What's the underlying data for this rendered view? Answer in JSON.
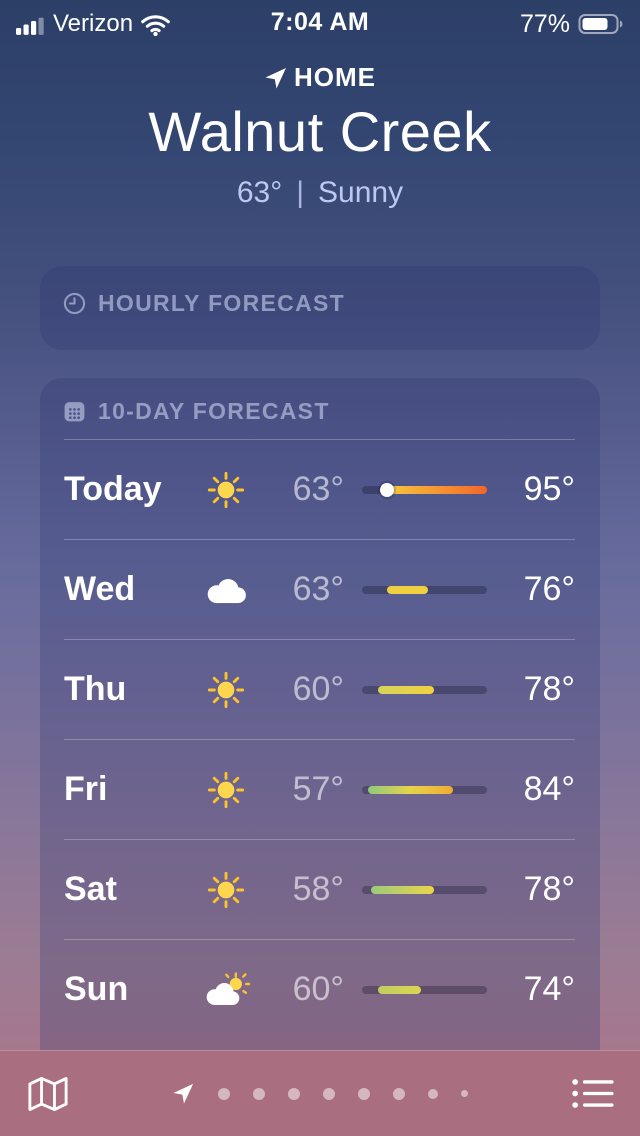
{
  "status_bar": {
    "carrier": "Verizon",
    "time": "7:04 AM",
    "battery_percent": "77%"
  },
  "header": {
    "location_label": "HOME",
    "city": "Walnut Creek",
    "current_temp": "63°",
    "separator": "|",
    "condition": "Sunny"
  },
  "hourly": {
    "title": "HOURLY FORECAST"
  },
  "ten_day": {
    "title": "10-DAY FORECAST",
    "scale": {
      "min": 55,
      "max": 95
    },
    "days": [
      {
        "day": "Today",
        "icon": "sun",
        "low": "63°",
        "high": "95°",
        "low_val": 63,
        "high_val": 95,
        "dot": true,
        "bar_colors": [
          "#f6c63e",
          "#f2672a"
        ]
      },
      {
        "day": "Wed",
        "icon": "cloud",
        "low": "63°",
        "high": "76°",
        "low_val": 63,
        "high_val": 76,
        "dot": false,
        "bar_colors": [
          "#f0d041",
          "#f0d041"
        ]
      },
      {
        "day": "Thu",
        "icon": "sun",
        "low": "60°",
        "high": "78°",
        "low_val": 60,
        "high_val": 78,
        "dot": false,
        "bar_colors": [
          "#d3d45a",
          "#f2d043"
        ]
      },
      {
        "day": "Fri",
        "icon": "sun",
        "low": "57°",
        "high": "84°",
        "low_val": 57,
        "high_val": 84,
        "dot": false,
        "bar_colors": [
          "#8fca7d",
          "#e7d24a",
          "#f0ab33"
        ]
      },
      {
        "day": "Sat",
        "icon": "sun",
        "low": "58°",
        "high": "78°",
        "low_val": 58,
        "high_val": 78,
        "dot": false,
        "bar_colors": [
          "#9cca7b",
          "#ecd44b"
        ]
      },
      {
        "day": "Sun",
        "icon": "sun-cloud",
        "low": "60°",
        "high": "74°",
        "low_val": 60,
        "high_val": 74,
        "dot": false,
        "bar_colors": [
          "#bece62",
          "#ddd550"
        ]
      }
    ]
  },
  "bottom_bar": {
    "map_icon": "map-icon",
    "location_page_icon": "location-arrow-icon",
    "list_icon": "list-icon",
    "page_dot_sizes": [
      12,
      12,
      12,
      12,
      12,
      12,
      10,
      7
    ]
  }
}
